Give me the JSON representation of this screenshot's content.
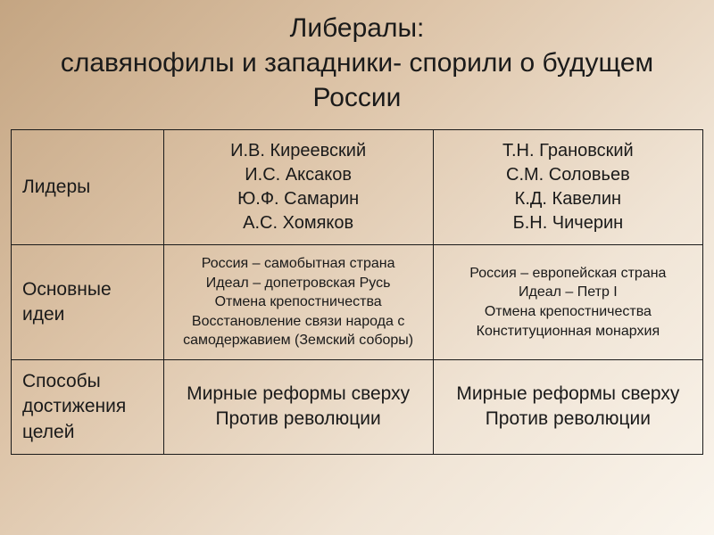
{
  "title": "Либералы:\nславянофилы и западники- спорили о будущем России",
  "rows": {
    "leaders": {
      "label": "Лидеры",
      "col1": "И.В. Киреевский\nИ.С. Аксаков\nЮ.Ф. Самарин\nА.С. Хомяков",
      "col2": "Т.Н. Грановский\nС.М. Соловьев\nК.Д. Кавелин\nБ.Н. Чичерин"
    },
    "ideas": {
      "label": "Основные идеи",
      "col1": "Россия – самобытная страна\nИдеал – допетровская Русь\nОтмена крепостничества\nВосстановление связи народа с самодержавием (Земский соборы)",
      "col2": "Россия – европейская страна\nИдеал – Петр I\nОтмена крепостничества\nКонституционная монархия"
    },
    "methods": {
      "label": "Способы достижения целей",
      "col1": "Мирные реформы сверху\nПротив революции",
      "col2": "Мирные реформы сверху\nПротив революции"
    }
  },
  "styling": {
    "title_fontsize": 30,
    "label_fontsize": 21,
    "leaders_fontsize": 20,
    "ideas_fontsize": 16,
    "methods_fontsize": 21,
    "text_color": "#1a1a1a",
    "border_color": "#1a1a1a",
    "gradient_start": "#c4a582",
    "gradient_mid1": "#ddc4a8",
    "gradient_mid2": "#f0e4d5",
    "gradient_end": "#faf5ed",
    "col1_width_pct": 22,
    "col_data_width_pct": 39
  }
}
